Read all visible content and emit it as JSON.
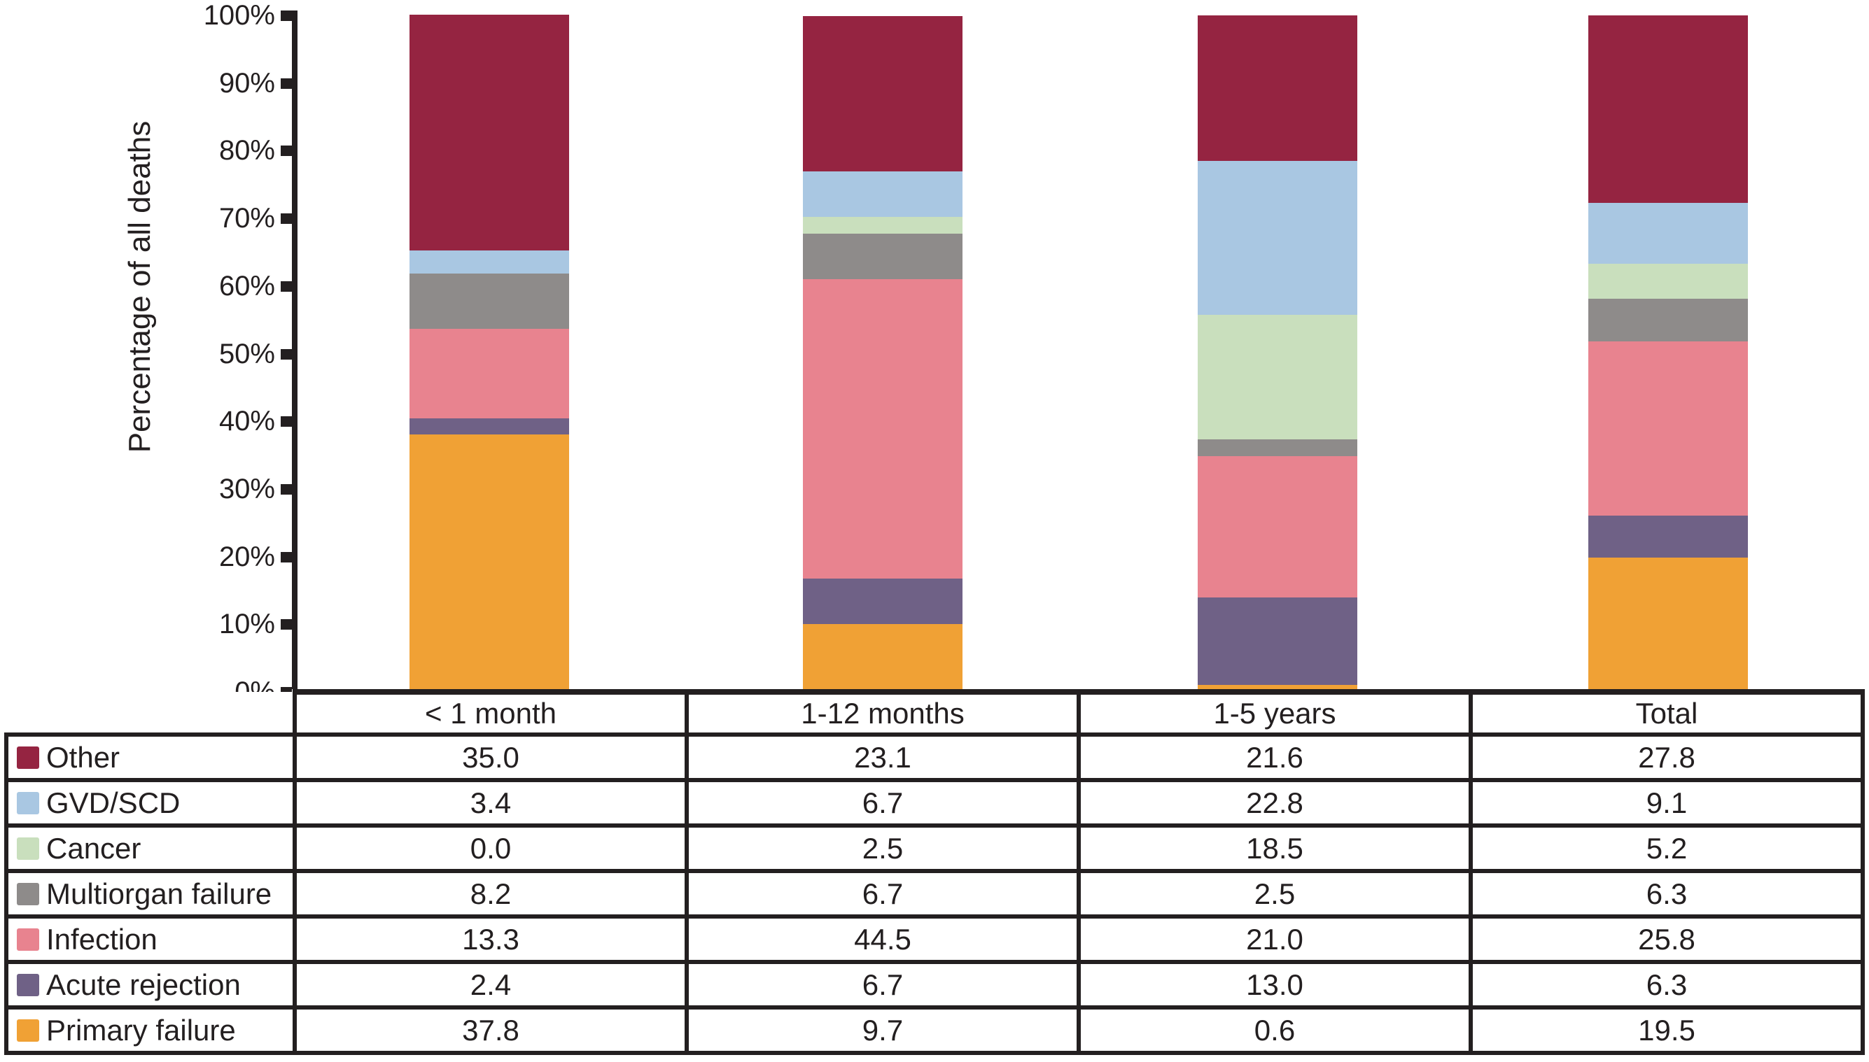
{
  "chart_data": {
    "type": "bar",
    "subtype": "stacked-percentage",
    "title": "",
    "ylabel": "Percentage of all deaths",
    "xlabel": "",
    "ylim": [
      0,
      100
    ],
    "y_ticks": [
      "0%",
      "10%",
      "20%",
      "30%",
      "40%",
      "50%",
      "60%",
      "70%",
      "80%",
      "90%",
      "100%"
    ],
    "grid": false,
    "legend_position": "table-left",
    "categories": [
      "< 1 month",
      "1-12 months",
      "1-5 years",
      "Total"
    ],
    "series": [
      {
        "name": "Other",
        "color": "#952441",
        "values": [
          35.0,
          23.1,
          21.6,
          27.8
        ]
      },
      {
        "name": "GVD/SCD",
        "color": "#A9C7E2",
        "values": [
          3.4,
          6.7,
          22.8,
          9.1
        ]
      },
      {
        "name": "Cancer",
        "color": "#C9DFBD",
        "values": [
          0.0,
          2.5,
          18.5,
          5.2
        ]
      },
      {
        "name": "Multiorgan failure",
        "color": "#8E8B8A",
        "values": [
          8.2,
          6.7,
          2.5,
          6.3
        ]
      },
      {
        "name": "Infection",
        "color": "#E8838F",
        "values": [
          13.3,
          44.5,
          21.0,
          25.8
        ]
      },
      {
        "name": "Acute rejection",
        "color": "#6F6186",
        "values": [
          2.4,
          6.7,
          13.0,
          6.3
        ]
      },
      {
        "name": "Primary failure",
        "color": "#F0A135",
        "values": [
          37.8,
          9.7,
          0.6,
          19.5
        ]
      }
    ],
    "stack_order_bottom_to_top": [
      "Primary failure",
      "Acute rejection",
      "Infection",
      "Multiorgan failure",
      "Cancer",
      "GVD/SCD",
      "Other"
    ],
    "value_format": "one-decimal",
    "axis_color": "#231F20",
    "text_color": "#231F20"
  }
}
